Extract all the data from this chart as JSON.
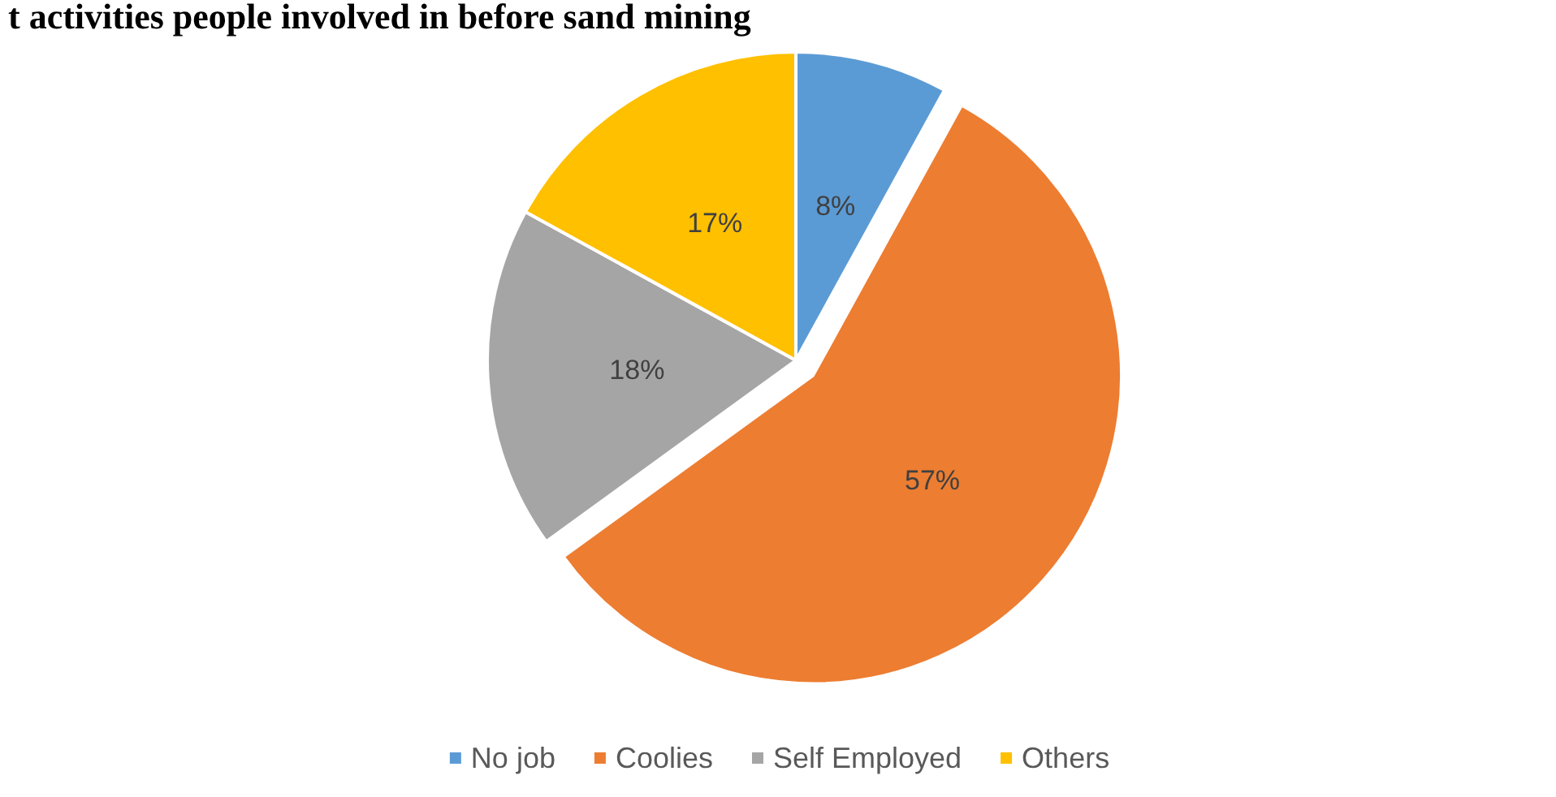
{
  "chart_data": {
    "type": "pie",
    "title": "t activities people involved in before sand mining",
    "categories": [
      "No job",
      "Coolies",
      "Self Employed",
      "Others"
    ],
    "values": [
      8,
      57,
      18,
      17
    ],
    "colors": [
      "#5b9bd5",
      "#ed7d31",
      "#a5a5a5",
      "#ffc000"
    ],
    "value_labels": [
      "8%",
      "57%",
      "18%",
      "17%"
    ],
    "legend": "bottom"
  }
}
